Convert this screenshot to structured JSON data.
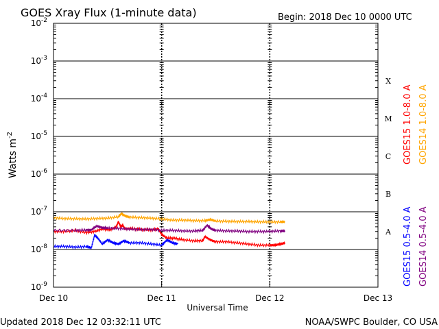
{
  "header": {
    "title": "GOES Xray Flux (1-minute data)",
    "begin": "Begin:  2018 Dec 10 0000 UTC"
  },
  "footer": {
    "updated": "Updated 2018 Dec 12 03:32:11 UTC",
    "credit": "NOAA/SWPC Boulder, CO USA"
  },
  "chart_data": {
    "type": "line",
    "title": "GOES Xray Flux (1-minute data)",
    "xlabel": "Universal Time",
    "ylabel": "Watts m",
    "ylabel_exponent": "-2",
    "y_scale": "log",
    "ylim": [
      "1e-9",
      "1e-2"
    ],
    "xlim_days": [
      0,
      3
    ],
    "grid": "horizontal decade lines",
    "x_ticks": [
      {
        "day": 0,
        "label": "Dec 10"
      },
      {
        "day": 1,
        "label": "Dec 11"
      },
      {
        "day": 2,
        "label": "Dec 12"
      },
      {
        "day": 3,
        "label": "Dec 13"
      }
    ],
    "y_ticks": [
      {
        "value": "1e-2",
        "base": "10",
        "exp": "-2"
      },
      {
        "value": "1e-3",
        "base": "10",
        "exp": "-3"
      },
      {
        "value": "1e-4",
        "base": "10",
        "exp": "-4"
      },
      {
        "value": "1e-5",
        "base": "10",
        "exp": "-5"
      },
      {
        "value": "1e-6",
        "base": "10",
        "exp": "-6"
      },
      {
        "value": "1e-7",
        "base": "10",
        "exp": "-7"
      },
      {
        "value": "1e-8",
        "base": "10",
        "exp": "-8"
      },
      {
        "value": "1e-9",
        "base": "10",
        "exp": "-9"
      }
    ],
    "flare_classes": [
      {
        "label": "X",
        "value": "3e-4"
      },
      {
        "label": "M",
        "value": "3e-5"
      },
      {
        "label": "C",
        "value": "3e-6"
      },
      {
        "label": "B",
        "value": "3e-7"
      },
      {
        "label": "A",
        "value": "3e-8"
      }
    ],
    "legend_placement": "right",
    "series": [
      {
        "name": "GOES15 1.0-8.0 A",
        "color": "#ff0000",
        "x": [
          0,
          0.1,
          0.2,
          0.3,
          0.38,
          0.45,
          0.52,
          0.58,
          0.6,
          0.62,
          0.64,
          0.66,
          0.72,
          0.8,
          0.9,
          0.97,
          1.0,
          1.05,
          1.12,
          1.2,
          1.3,
          1.38,
          1.4,
          1.45,
          1.5,
          1.6,
          1.7,
          1.8,
          1.9,
          2.0,
          2.05,
          2.1,
          2.14
        ],
        "y": [
          "3e-8",
          "3e-8",
          "3.2e-8",
          "2.8e-8",
          "3e-8",
          "3.5e-8",
          "3.3e-8",
          "4e-8",
          "5.5e-8",
          "4e-8",
          "4.5e-8",
          "3.5e-8",
          "3.6e-8",
          "3.4e-8",
          "3.3e-8",
          "3.5e-8",
          "2.5e-8",
          "2e-8",
          "2e-8",
          "1.8e-8",
          "1.7e-8",
          "1.7e-8",
          "2.2e-8",
          "1.8e-8",
          "1.6e-8",
          "1.6e-8",
          "1.5e-8",
          "1.4e-8",
          "1.3e-8",
          "1.3e-8",
          "1.3e-8",
          "1.4e-8",
          "1.5e-8"
        ]
      },
      {
        "name": "GOES14 1.0-8.0 A",
        "color": "#ffa500",
        "x": [
          0,
          0.1,
          0.2,
          0.3,
          0.4,
          0.5,
          0.6,
          0.63,
          0.66,
          0.7,
          0.8,
          0.9,
          1.0,
          1.1,
          1.2,
          1.3,
          1.4,
          1.45,
          1.5,
          1.6,
          1.7,
          1.8,
          1.9,
          2.0,
          2.1,
          2.14
        ],
        "y": [
          "7e-8",
          "6.6e-8",
          "6.5e-8",
          "6.4e-8",
          "6.6e-8",
          "6.8e-8",
          "7.4e-8",
          "9e-8",
          "7.8e-8",
          "7.2e-8",
          "7e-8",
          "6.8e-8",
          "6.5e-8",
          "6e-8",
          "6e-8",
          "5.8e-8",
          "5.8e-8",
          "6.2e-8",
          "5.7e-8",
          "5.6e-8",
          "5.5e-8",
          "5.5e-8",
          "5.4e-8",
          "5.4e-8",
          "5.4e-8",
          "5.4e-8"
        ]
      },
      {
        "name": "GOES15 0.5-4.0 A",
        "color": "#0000ff",
        "x": [
          0,
          0.1,
          0.2,
          0.3,
          0.35,
          0.38,
          0.41,
          0.45,
          0.5,
          0.55,
          0.6,
          0.65,
          0.7,
          0.8,
          0.9,
          1.0,
          1.05,
          1.1,
          1.15
        ],
        "y": [
          "1.2e-8",
          "1.2e-8",
          "1.15e-8",
          "1.2e-8",
          "1.1e-8",
          "2.4e-8",
          "2e-8",
          "1.4e-8",
          "1.8e-8",
          "1.5e-8",
          "1.4e-8",
          "1.7e-8",
          "1.5e-8",
          "1.5e-8",
          "1.4e-8",
          "1.3e-8",
          "1.8e-8",
          "1.5e-8",
          "1.4e-8"
        ]
      },
      {
        "name": "GOES14 0.5-4.0 A",
        "color": "#800080",
        "x": [
          0,
          0.2,
          0.3,
          0.35,
          0.4,
          0.45,
          0.5,
          0.6,
          0.7,
          0.8,
          0.9,
          1.0,
          1.1,
          1.2,
          1.3,
          1.38,
          1.42,
          1.46,
          1.5,
          1.6,
          1.7,
          1.8,
          1.9,
          2.0,
          2.1,
          2.14
        ],
        "y": [
          "3.2e-8",
          "3.2e-8",
          "3.3e-8",
          "3.3e-8",
          "4.2e-8",
          "3.8e-8",
          "3.7e-8",
          "3.6e-8",
          "3.5e-8",
          "3.4e-8",
          "3.4e-8",
          "3.2e-8",
          "3.2e-8",
          "3.1e-8",
          "3.1e-8",
          "3.2e-8",
          "4.4e-8",
          "3.5e-8",
          "3.2e-8",
          "3.1e-8",
          "3.1e-8",
          "3e-8",
          "3e-8",
          "3e-8",
          "3.1e-8",
          "3.1e-8"
        ]
      }
    ]
  }
}
